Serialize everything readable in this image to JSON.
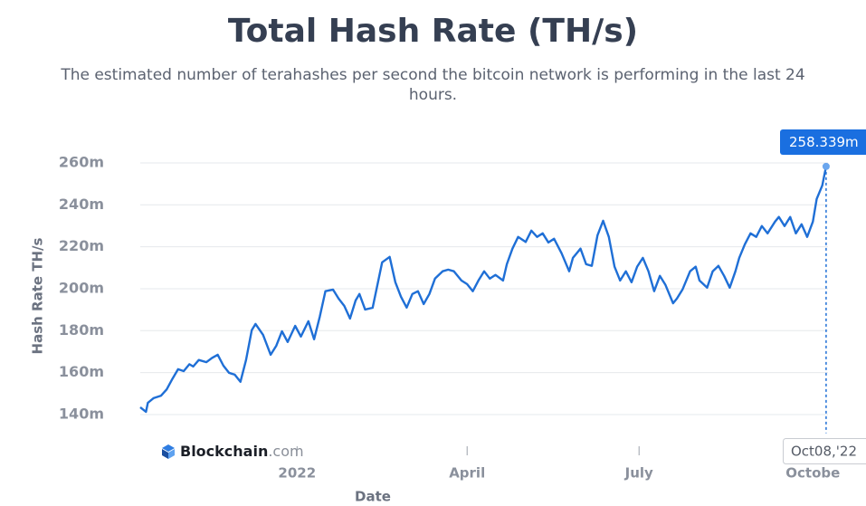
{
  "title": "Total Hash Rate (TH/s)",
  "subtitle": "The estimated number of terahashes per second the bitcoin network is performing in the last 24 hours.",
  "watermark": {
    "brand": "Blockchain",
    "suffix": ".com"
  },
  "tooltip": {
    "label": "258.339m",
    "x_label": "Oct08,'22"
  },
  "chart_data": {
    "type": "line",
    "x_label": "Date",
    "y_label": "Hash Rate TH/s",
    "grid": true,
    "xlim": [
      "2021-10-10",
      "2022-10-09"
    ],
    "ylim": [
      132,
      264
    ],
    "yticks": [
      {
        "value": 140,
        "label": "140m"
      },
      {
        "value": 160,
        "label": "160m"
      },
      {
        "value": 180,
        "label": "180m"
      },
      {
        "value": 200,
        "label": "200m"
      },
      {
        "value": 220,
        "label": "220m"
      },
      {
        "value": 240,
        "label": "240m"
      },
      {
        "value": 260,
        "label": "260m"
      }
    ],
    "xticks": [
      {
        "value": "2022-01-01",
        "label": "2022"
      },
      {
        "value": "2022-04-01",
        "label": "April"
      },
      {
        "value": "2022-07-01",
        "label": "July"
      },
      {
        "value": "2022-10-01",
        "label": "Octobe"
      }
    ],
    "x": [
      "2021-10-10",
      "2021-10-13",
      "2021-10-14",
      "2021-10-17",
      "2021-10-21",
      "2021-10-24",
      "2021-10-27",
      "2021-10-30",
      "2021-11-02",
      "2021-11-05",
      "2021-11-07",
      "2021-11-10",
      "2021-11-14",
      "2021-11-17",
      "2021-11-20",
      "2021-11-23",
      "2021-11-26",
      "2021-11-29",
      "2021-12-02",
      "2021-12-05",
      "2021-12-08",
      "2021-12-10",
      "2021-12-14",
      "2021-12-18",
      "2021-12-21",
      "2021-12-24",
      "2021-12-27",
      "2021-12-31",
      "2022-01-03",
      "2022-01-07",
      "2022-01-10",
      "2022-01-13",
      "2022-01-16",
      "2022-01-20",
      "2022-01-23",
      "2022-01-26",
      "2022-01-29",
      "2022-02-01",
      "2022-02-03",
      "2022-02-06",
      "2022-02-10",
      "2022-02-13",
      "2022-02-15",
      "2022-02-19",
      "2022-02-22",
      "2022-02-25",
      "2022-02-28",
      "2022-03-03",
      "2022-03-06",
      "2022-03-09",
      "2022-03-12",
      "2022-03-15",
      "2022-03-19",
      "2022-03-22",
      "2022-03-25",
      "2022-03-29",
      "2022-04-01",
      "2022-04-04",
      "2022-04-07",
      "2022-04-10",
      "2022-04-13",
      "2022-04-16",
      "2022-04-20",
      "2022-04-22",
      "2022-04-25",
      "2022-04-28",
      "2022-05-02",
      "2022-05-05",
      "2022-05-08",
      "2022-05-11",
      "2022-05-14",
      "2022-05-17",
      "2022-05-21",
      "2022-05-25",
      "2022-05-27",
      "2022-05-31",
      "2022-06-03",
      "2022-06-06",
      "2022-06-09",
      "2022-06-12",
      "2022-06-15",
      "2022-06-18",
      "2022-06-21",
      "2022-06-24",
      "2022-06-27",
      "2022-06-30",
      "2022-07-03",
      "2022-07-06",
      "2022-07-09",
      "2022-07-12",
      "2022-07-15",
      "2022-07-19",
      "2022-07-21",
      "2022-07-24",
      "2022-07-28",
      "2022-07-31",
      "2022-08-02",
      "2022-08-06",
      "2022-08-09",
      "2022-08-12",
      "2022-08-15",
      "2022-08-18",
      "2022-08-21",
      "2022-08-23",
      "2022-08-26",
      "2022-08-29",
      "2022-09-01",
      "2022-09-04",
      "2022-09-07",
      "2022-09-11",
      "2022-09-13",
      "2022-09-16",
      "2022-09-19",
      "2022-09-22",
      "2022-09-25",
      "2022-09-28",
      "2022-10-01",
      "2022-10-03",
      "2022-10-06",
      "2022-10-08"
    ],
    "series": [
      {
        "name": "Hash Rate",
        "color": "#1f6fd6",
        "values": [
          143.5,
          141.3,
          145.6,
          147.8,
          149,
          152,
          157,
          161.6,
          160.7,
          164,
          162.9,
          166,
          165,
          167,
          168.5,
          163.3,
          159.9,
          159,
          155.6,
          166,
          180.2,
          183.2,
          178,
          168.5,
          172.8,
          179.7,
          174.6,
          182.3,
          177.2,
          184.5,
          175.9,
          186.7,
          198.8,
          199.6,
          195.3,
          191.8,
          185.8,
          194.4,
          197.5,
          190.1,
          190.9,
          203.9,
          212.6,
          215.2,
          203.1,
          196.2,
          191,
          197.5,
          198.8,
          192.7,
          197.5,
          204.8,
          208.3,
          209.1,
          208.3,
          203.9,
          202.2,
          198.8,
          203.9,
          208.3,
          204.8,
          206.6,
          203.9,
          211.7,
          219.1,
          224.7,
          222.3,
          227.7,
          224.7,
          226.4,
          222.1,
          223.8,
          216.9,
          208.3,
          214.7,
          219.1,
          211.7,
          210.9,
          225.5,
          232.4,
          224.7,
          210.5,
          203.9,
          208.3,
          203.1,
          210.5,
          214.7,
          208.3,
          198.8,
          206.1,
          201.8,
          193.1,
          195.3,
          199.6,
          208.3,
          210.5,
          203.9,
          200.5,
          208.3,
          210.9,
          206.1,
          200.5,
          208.3,
          214.7,
          221.2,
          226.4,
          224.7,
          229.9,
          226.4,
          232,
          234.2,
          229.9,
          234.2,
          226.4,
          230.7,
          224.7,
          232,
          242.8,
          249.3,
          258.339
        ]
      }
    ]
  }
}
